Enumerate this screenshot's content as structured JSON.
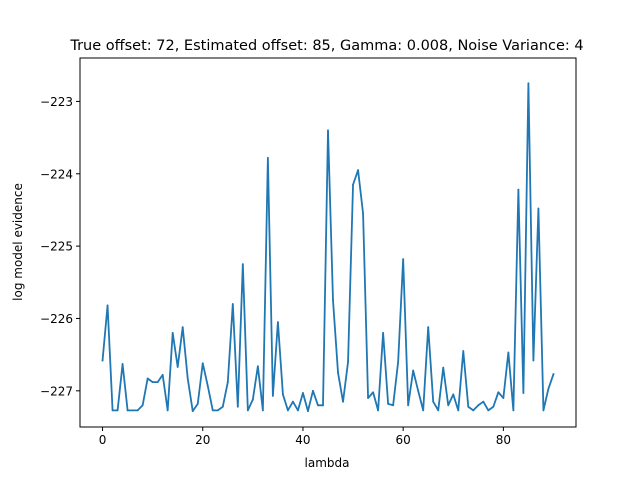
{
  "chart_data": {
    "type": "line",
    "title": "True offset: 72, Estimated offset: 85, Gamma: 0.008, Noise Variance: 4",
    "xlabel": "lambda",
    "ylabel": "log model evidence",
    "xlim": [
      -4.5,
      94.5
    ],
    "ylim": [
      -227.5,
      -222.4
    ],
    "xticks": [
      0,
      20,
      40,
      60,
      80
    ],
    "xtick_labels": [
      "0",
      "20",
      "40",
      "60",
      "80"
    ],
    "yticks": [
      -227,
      -226,
      -225,
      -224,
      -223
    ],
    "ytick_labels": [
      "−227",
      "−226",
      "−225",
      "−224",
      "−223"
    ],
    "grid": false,
    "series": [
      {
        "color": "#1f77b4",
        "x": [
          0,
          1,
          2,
          3,
          4,
          5,
          6,
          7,
          8,
          9,
          10,
          11,
          12,
          13,
          14,
          15,
          16,
          17,
          18,
          19,
          20,
          21,
          22,
          23,
          24,
          25,
          26,
          27,
          28,
          29,
          30,
          31,
          32,
          33,
          34,
          35,
          36,
          37,
          38,
          39,
          40,
          41,
          42,
          43,
          44,
          45,
          46,
          47,
          48,
          49,
          50,
          51,
          52,
          53,
          54,
          55,
          56,
          57,
          58,
          59,
          60,
          61,
          62,
          63,
          64,
          65,
          66,
          67,
          68,
          69,
          70,
          71,
          72,
          73,
          74,
          75,
          76,
          77,
          78,
          79,
          80,
          81,
          82,
          83,
          84,
          85,
          86,
          87,
          88,
          89,
          90
        ],
        "values": [
          -226.58,
          -225.82,
          -227.27,
          -227.27,
          -226.63,
          -227.27,
          -227.27,
          -227.27,
          -227.2,
          -226.83,
          -226.88,
          -226.88,
          -226.78,
          -227.27,
          -226.2,
          -226.67,
          -226.12,
          -226.83,
          -227.28,
          -227.18,
          -226.62,
          -226.93,
          -227.27,
          -227.27,
          -227.22,
          -226.88,
          -225.8,
          -227.22,
          -225.25,
          -227.27,
          -227.12,
          -226.66,
          -227.27,
          -223.78,
          -227.07,
          -226.05,
          -227.05,
          -227.27,
          -227.15,
          -227.27,
          -227.03,
          -227.28,
          -227.0,
          -227.2,
          -227.2,
          -223.4,
          -225.75,
          -226.75,
          -227.15,
          -226.6,
          -224.15,
          -223.95,
          -224.55,
          -227.1,
          -227.02,
          -227.27,
          -226.2,
          -227.18,
          -227.2,
          -226.6,
          -225.18,
          -227.2,
          -226.72,
          -227.0,
          -227.27,
          -226.12,
          -227.15,
          -227.27,
          -226.68,
          -227.2,
          -227.05,
          -227.27,
          -226.45,
          -227.22,
          -227.27,
          -227.2,
          -227.15,
          -227.27,
          -227.22,
          -227.02,
          -227.1,
          -226.47,
          -227.27,
          -224.22,
          -227.03,
          -222.75,
          -226.58,
          -224.48,
          -227.27,
          -226.97,
          -226.77
        ]
      }
    ]
  }
}
